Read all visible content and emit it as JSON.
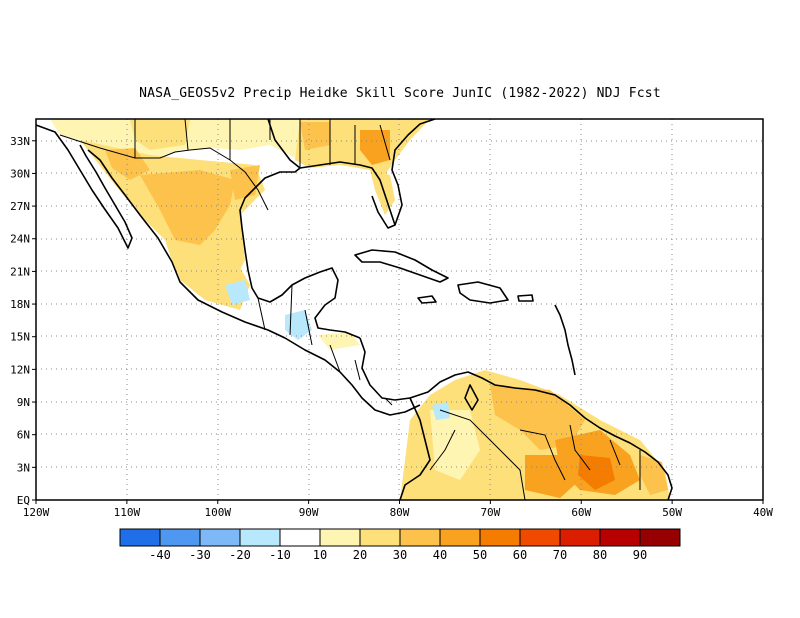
{
  "title": "NASA_GEOS5v2 Precip Heidke Skill Score JunIC (1982-2022) NDJ Fcst",
  "map": {
    "lon_range": [
      -120,
      -40
    ],
    "lat_range": [
      0,
      35
    ],
    "grid": "dotted",
    "x_ticks": [
      {
        "lon": -120,
        "label": "120W"
      },
      {
        "lon": -110,
        "label": "110W"
      },
      {
        "lon": -100,
        "label": "100W"
      },
      {
        "lon": -90,
        "label": "90W"
      },
      {
        "lon": -80,
        "label": "80W"
      },
      {
        "lon": -70,
        "label": "70W"
      },
      {
        "lon": -60,
        "label": "60W"
      },
      {
        "lon": -50,
        "label": "50W"
      },
      {
        "lon": -40,
        "label": "40W"
      }
    ],
    "y_ticks": [
      {
        "lat": 0,
        "label": "EQ"
      },
      {
        "lat": 3,
        "label": "3N"
      },
      {
        "lat": 6,
        "label": "6N"
      },
      {
        "lat": 9,
        "label": "9N"
      },
      {
        "lat": 12,
        "label": "12N"
      },
      {
        "lat": 15,
        "label": "15N"
      },
      {
        "lat": 18,
        "label": "18N"
      },
      {
        "lat": 21,
        "label": "21N"
      },
      {
        "lat": 24,
        "label": "24N"
      },
      {
        "lat": 27,
        "label": "27N"
      },
      {
        "lat": 30,
        "label": "30N"
      },
      {
        "lat": 33,
        "label": "33N"
      }
    ]
  },
  "colorbar": {
    "colors": [
      "#1f6fe8",
      "#4f98f2",
      "#7eb8f7",
      "#b8e8fb",
      "#ffffff",
      "#fff5b3",
      "#fde07a",
      "#fcc24b",
      "#f9a21f",
      "#f47c00",
      "#f04a00",
      "#dc1e00",
      "#b80000",
      "#960000"
    ],
    "labels": [
      "-40",
      "-30",
      "-20",
      "-10",
      "10",
      "20",
      "30",
      "40",
      "50",
      "60",
      "70",
      "80",
      "90"
    ]
  }
}
